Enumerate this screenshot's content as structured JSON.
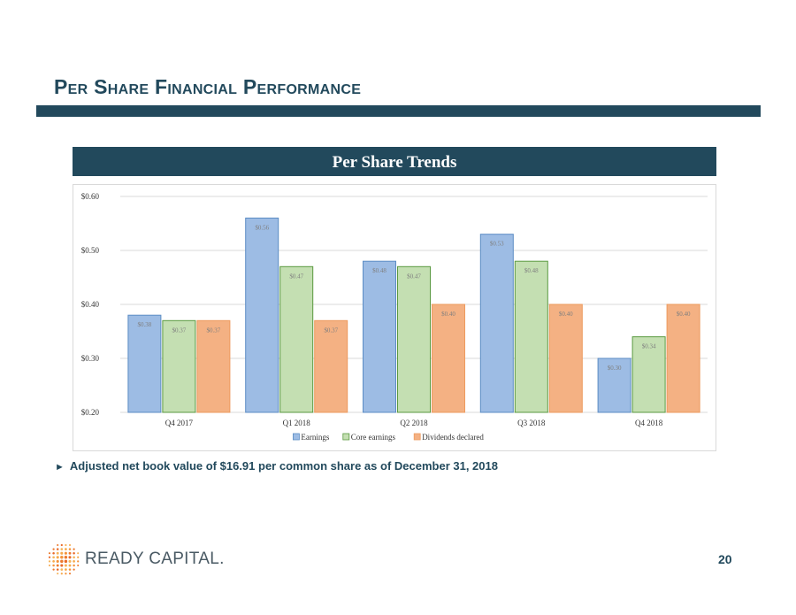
{
  "slide": {
    "title": "Per Share Financial Performance",
    "bullet": "Adjusted net book value of $16.91 per common share as of December 31, 2018",
    "page_number": "20",
    "logo_text": "READY CAPITAL.",
    "accent_color": "#22495c"
  },
  "chart_data": {
    "type": "bar",
    "title": "Per Share Trends",
    "categories": [
      "Q4 2017",
      "Q1 2018",
      "Q2 2018",
      "Q3 2018",
      "Q4 2018"
    ],
    "series": [
      {
        "name": "Earnings",
        "values": [
          0.38,
          0.56,
          0.48,
          0.53,
          0.3
        ],
        "labels": [
          "$0.38",
          "$0.56",
          "$0.48",
          "$0.53",
          "$0.30"
        ],
        "color": "#9dbce4"
      },
      {
        "name": "Core earnings",
        "values": [
          0.37,
          0.47,
          0.47,
          0.48,
          0.34
        ],
        "labels": [
          "$0.37",
          "$0.47",
          "$0.47",
          "$0.48",
          "$0.34"
        ],
        "color": "#c4dfb2"
      },
      {
        "name": "Dividends declared",
        "values": [
          0.37,
          0.37,
          0.4,
          0.4,
          0.4
        ],
        "labels": [
          "$0.37",
          "$0.37",
          "$0.40",
          "$0.40",
          "$0.40"
        ],
        "color": "#f4b183"
      }
    ],
    "ylim": [
      0.2,
      0.6
    ],
    "yticks": [
      0.2,
      0.3,
      0.4,
      0.5,
      0.6
    ],
    "ytick_labels": [
      "$0.20",
      "$0.30",
      "$0.40",
      "$0.50",
      "$0.60"
    ],
    "grid": true,
    "legend": "bottom"
  }
}
